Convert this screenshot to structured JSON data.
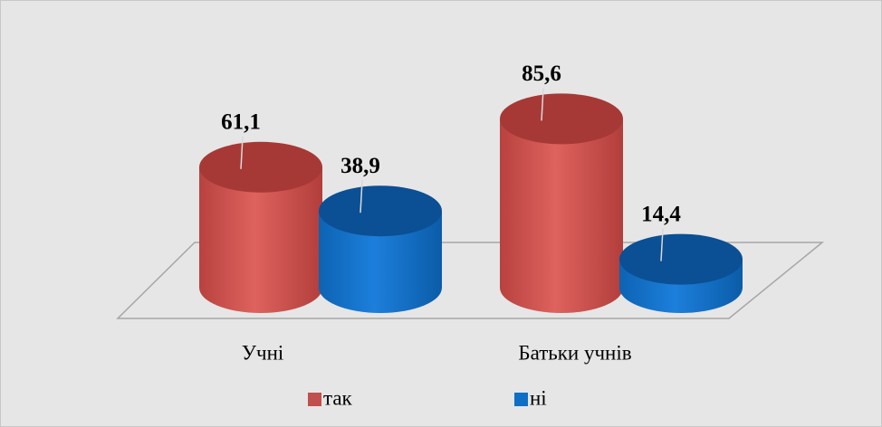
{
  "chart_data": {
    "type": "bar3d",
    "categories": [
      "Учні",
      "Батьки учнів"
    ],
    "series": [
      {
        "name": "так",
        "color": "#c0504d",
        "values": [
          61.1,
          85.6
        ],
        "value_labels": [
          "61,1",
          "85,6"
        ]
      },
      {
        "name": "ні",
        "color": "#0f6fc6",
        "values": [
          38.9,
          14.4
        ],
        "value_labels": [
          "38,9",
          "14,4"
        ]
      }
    ],
    "legend": "bottom"
  }
}
